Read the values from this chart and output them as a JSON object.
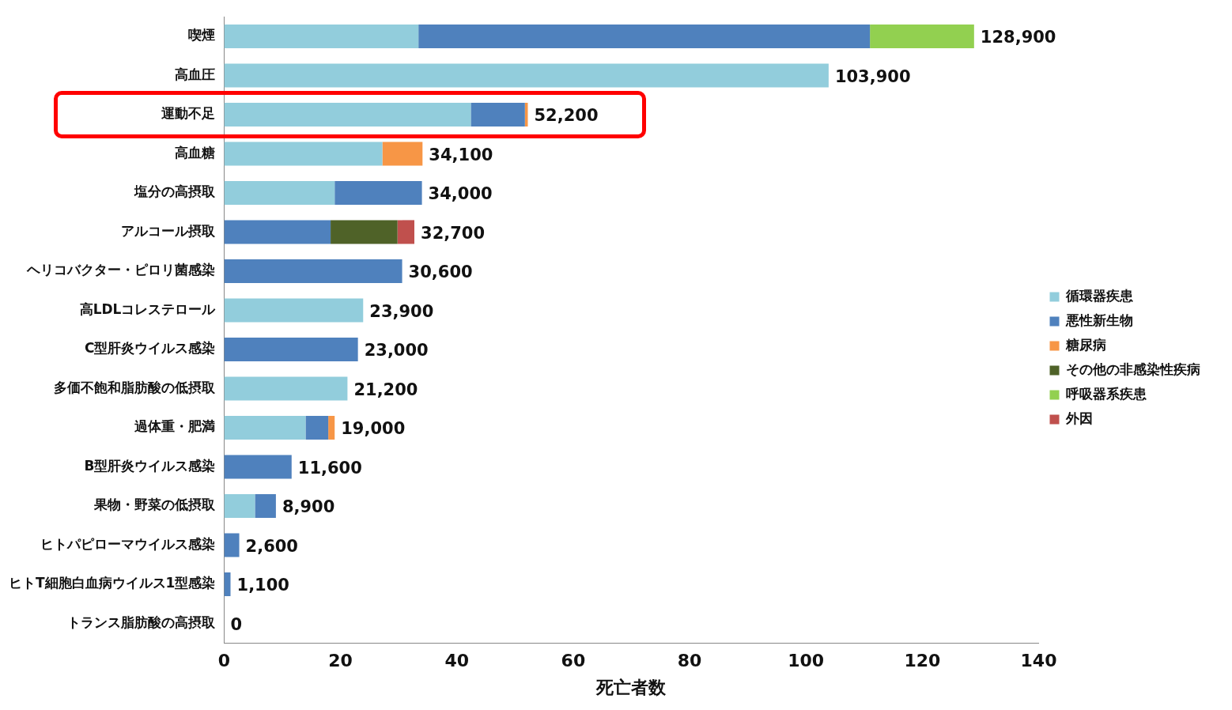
{
  "chart_data": {
    "type": "bar",
    "orientation": "horizontal",
    "stacked": true,
    "xlabel": "死亡者数",
    "categories": [
      "喫煙",
      "高血圧",
      "運動不足",
      "高血糖",
      "塩分の高摂取",
      "アルコール摂取",
      "ヘリコバクター・ピロリ菌感染",
      "高LDLコレステロール",
      "C型肝炎ウイルス感染",
      "多価不飽和脂肪酸の低摂取",
      "過体重・肥満",
      "B型肝炎ウイルス感染",
      "果物・野菜の低摂取",
      "ヒトパピローマウイルス感染",
      "ヒトT細胞白血病ウイルス1型感染",
      "トランス脂肪酸の高摂取"
    ],
    "series": [
      {
        "name": "循環器疾患",
        "color": "#92cddc",
        "values": [
          33.4,
          103.9,
          42.4,
          27.2,
          19.0,
          null,
          null,
          23.9,
          null,
          21.2,
          14.0,
          null,
          5.3,
          null,
          null,
          0
        ]
      },
      {
        "name": "悪性新生物",
        "color": "#4f81bd",
        "values": [
          77.6,
          null,
          9.3,
          null,
          15.0,
          18.3,
          30.6,
          null,
          23.0,
          null,
          3.9,
          11.6,
          3.6,
          2.6,
          1.1,
          null
        ]
      },
      {
        "name": "糖尿病",
        "color": "#f79646",
        "values": [
          null,
          null,
          0.5,
          6.9,
          null,
          null,
          null,
          null,
          null,
          null,
          1.1,
          null,
          null,
          null,
          null,
          null
        ]
      },
      {
        "name": "その他の非感染性疾病",
        "color": "#4f6228",
        "values": [
          null,
          null,
          null,
          null,
          null,
          11.5,
          null,
          null,
          null,
          null,
          null,
          null,
          null,
          null,
          null,
          null
        ]
      },
      {
        "name": "呼吸器系疾患",
        "color": "#92d050",
        "values": [
          17.9,
          null,
          null,
          null,
          null,
          null,
          null,
          null,
          null,
          null,
          null,
          null,
          null,
          null,
          null,
          null
        ]
      },
      {
        "name": "外因",
        "color": "#c0504d",
        "values": [
          null,
          null,
          null,
          null,
          null,
          2.9,
          null,
          null,
          null,
          null,
          null,
          null,
          null,
          null,
          null,
          null
        ]
      }
    ],
    "totals": [
      "128,900",
      "103,900",
      "52,200",
      "34,100",
      "34,000",
      "32,700",
      "30,600",
      "23,900",
      "23,000",
      "21,200",
      "19,000",
      "11,600",
      "8,900",
      "2,600",
      "1,100",
      "0"
    ],
    "xlim": [
      0,
      140
    ],
    "xticks": [
      0,
      20,
      40,
      60,
      80,
      100,
      120,
      140
    ],
    "grid": false,
    "legend": "right"
  }
}
